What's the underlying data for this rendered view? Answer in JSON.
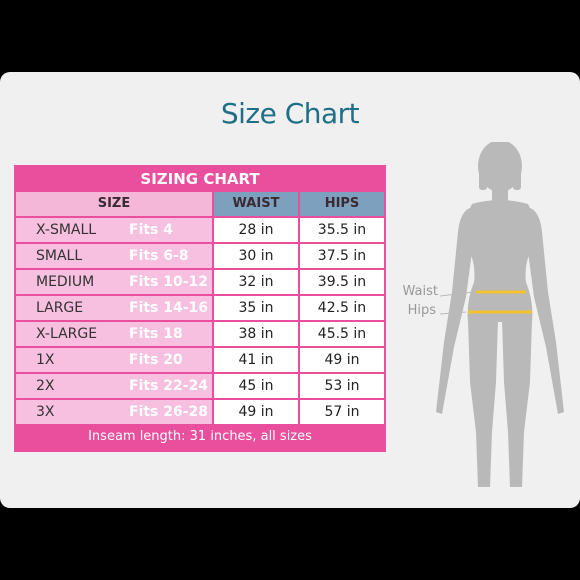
{
  "page_title": "Size Chart",
  "table": {
    "title": "SIZING CHART",
    "headers": {
      "size": "SIZE",
      "waist": "WAIST",
      "hips": "HIPS"
    },
    "rows": [
      {
        "size": "X-SMALL",
        "fits": "Fits 4",
        "waist": "28 in",
        "hips": "35.5 in"
      },
      {
        "size": "SMALL",
        "fits": "Fits 6-8",
        "waist": "30 in",
        "hips": "37.5 in"
      },
      {
        "size": "MEDIUM",
        "fits": "Fits 10-12",
        "waist": "32 in",
        "hips": "39.5 in"
      },
      {
        "size": "LARGE",
        "fits": "Fits 14-16",
        "waist": "35 in",
        "hips": "42.5 in"
      },
      {
        "size": "X-LARGE",
        "fits": "Fits 18",
        "waist": "38 in",
        "hips": "45.5 in"
      },
      {
        "size": "1X",
        "fits": "Fits 20",
        "waist": "41 in",
        "hips": "49 in"
      },
      {
        "size": "2X",
        "fits": "Fits 22-24",
        "waist": "45 in",
        "hips": "53 in"
      },
      {
        "size": "3X",
        "fits": "Fits 26-28",
        "waist": "49 in",
        "hips": "57 in"
      }
    ],
    "footer": "Inseam length: 31 inches, all sizes"
  },
  "figure": {
    "waist_label": "Waist",
    "hips_label": "Hips"
  },
  "colors": {
    "title": "#1f6f86",
    "pink": "#e94f9c",
    "light_pink": "#f7bfe0",
    "blue_header": "#7ea0bf",
    "measure_line": "#f2c230",
    "silhouette": "#b9b9b9"
  }
}
